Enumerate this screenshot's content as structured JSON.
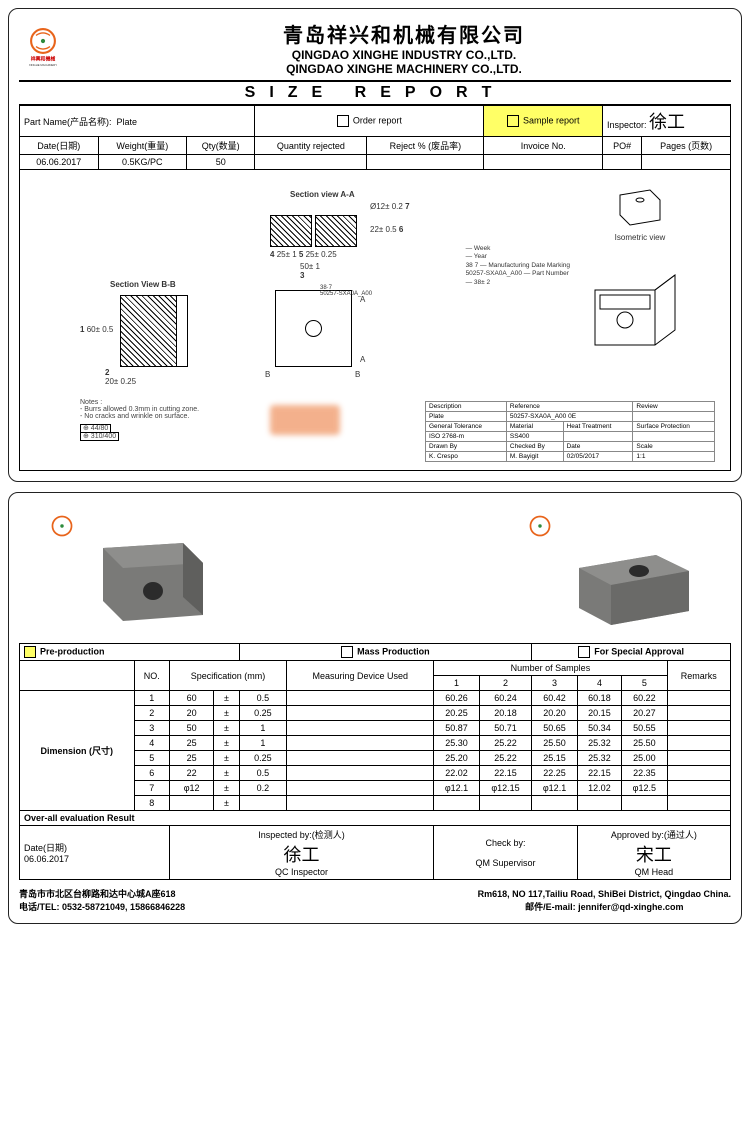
{
  "colors": {
    "highlight": "#ffff66",
    "border": "#000000",
    "logo_orange": "#e8641b",
    "logo_green": "#2e8b3d",
    "photo_grey": "#7a7a78"
  },
  "company": {
    "cn": "青岛祥兴和机械有限公司",
    "en1": "QINGDAO XINGHE INDUSTRY CO.,LTD.",
    "en2": "QINGDAO XINGHE MACHINERY CO.,LTD.",
    "logo_sub": "祥興和機械",
    "logo_sub_en": "XINGHE MACHINERY"
  },
  "report": {
    "title": "SIZE  REPORT",
    "part_name_label": "Part Name(产品名称):",
    "part_name": "Plate",
    "order_label": "Order report",
    "sample_label": "Sample report",
    "inspector_label": "Inspector:",
    "inspector_sign": "徐工",
    "date_label": "Date(日期)",
    "weight_label": "Weight(重量)",
    "qty_label": "Qty(数量)",
    "qty_rej_label": "Quantity rejected",
    "reject_pct_label": "Reject % (废品率)",
    "invoice_label": "Invoice No.",
    "po_label": "PO#",
    "pages_label": "Pages (页数)",
    "date": "06.06.2017",
    "weight": "0.5KG/PC",
    "qty": "50"
  },
  "drawing": {
    "sec_aa": "Section view A-A",
    "sec_bb": "Section View B-B",
    "iso_label": "Isometric view",
    "d1": "60± 0.5",
    "d2": "20± 0.25",
    "d3": "50± 1",
    "d4": "25± 1",
    "d5": "25± 0.25",
    "d6": "22± 0.5",
    "d7": "Ø12± 0.2",
    "callout_week": "Week",
    "callout_year": "Year",
    "callout_mfg": "Manufacturing Date Marking",
    "callout_part": "Part Number",
    "part_no": "50257-SXA0A_A00",
    "stamp": "38 7",
    "stamp2": "38± 2",
    "notes_title": "Notes :",
    "note1": "- Burrs allowed 0.3mm in cutting zone.",
    "note2": "- No cracks and wrinkle on surface.",
    "spec": {
      "desc_l": "Description",
      "desc_v": "Plate",
      "ref_l": "Reference",
      "ref_v": "50257-SXA0A_A00 0E",
      "rev_l": "Review",
      "tol_l": "General Tolerance",
      "tol_v": "ISO 2768-m",
      "mat_l": "Material",
      "mat_v": "SS400",
      "ht_l": "Heat Treatment",
      "sp_l": "Surface Protection",
      "drawn_l": "Drawn By",
      "drawn_v": "K. Crespo",
      "chk_l": "Checked By",
      "chk_v": "M. Bayigit",
      "date_l": "Date",
      "date_v": "02/05/2017",
      "scale_l": "Scale",
      "scale_v": "1:1"
    }
  },
  "samples": {
    "pp": "Pre-production",
    "mp": "Mass Production",
    "fsa": "For Special Approval",
    "no": "NO.",
    "spec_mm": "Specification (mm)",
    "mdu": "Measuring Device Used",
    "nos": "Number of Samples",
    "remarks": "Remarks",
    "dim": "Dimension (尺寸)",
    "oer": "Over-all evaluation Result",
    "rows": [
      {
        "no": "1",
        "nom": "60",
        "tol": "0.5",
        "s": [
          "60.26",
          "60.24",
          "60.42",
          "60.18",
          "60.22"
        ]
      },
      {
        "no": "2",
        "nom": "20",
        "tol": "0.25",
        "s": [
          "20.25",
          "20.18",
          "20.20",
          "20.15",
          "20.27"
        ]
      },
      {
        "no": "3",
        "nom": "50",
        "tol": "1",
        "s": [
          "50.87",
          "50.71",
          "50.65",
          "50.34",
          "50.55"
        ]
      },
      {
        "no": "4",
        "nom": "25",
        "tol": "1",
        "s": [
          "25.30",
          "25.22",
          "25.50",
          "25.32",
          "25.50"
        ]
      },
      {
        "no": "5",
        "nom": "25",
        "tol": "0.25",
        "s": [
          "25.20",
          "25.22",
          "25.15",
          "25.32",
          "25.00"
        ]
      },
      {
        "no": "6",
        "nom": "22",
        "tol": "0.5",
        "s": [
          "22.02",
          "22.15",
          "22.25",
          "22.15",
          "22.35"
        ]
      },
      {
        "no": "7",
        "nom": "φ12",
        "tol": "0.2",
        "s": [
          "φ12.1",
          "φ12.15",
          "φ12.1",
          "12.02",
          "φ12.5"
        ]
      },
      {
        "no": "8",
        "nom": "",
        "tol": "",
        "s": [
          "",
          "",
          "",
          "",
          ""
        ]
      }
    ],
    "date_l": "Date(日期)",
    "date": "06.06.2017",
    "insp_l": "Inspected by:(检测人)",
    "insp_role": "QC Inspector",
    "insp_sign": "徐工",
    "chk_l": "Check by:",
    "chk_role": "QM Supervisor",
    "app_l": "Approved by:(通过人)",
    "app_role": "QM Head",
    "app_sign": "宋工"
  },
  "footer": {
    "cn_addr": "青岛市市北区台柳路和达中心城A座618",
    "cn_tel": "电话/TEL: 0532-58721049, 15866846228",
    "en_addr": "Rm618, NO 117,Tailiu Road, ShiBei District, Qingdao China.",
    "email": "邮件/E-mail:  jennifer@qd-xinghe.com"
  }
}
